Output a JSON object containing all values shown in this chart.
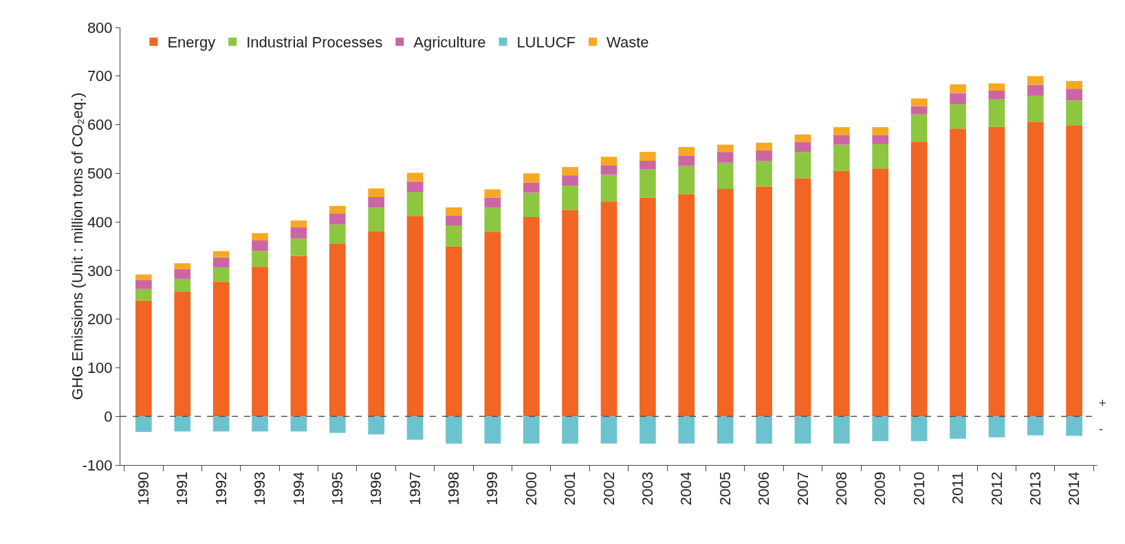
{
  "chart_data": {
    "type": "bar",
    "stacked": true,
    "ylabel": "GHG Emissions (Unit : million tons of CO₂eq.)",
    "categories": [
      "1990",
      "1991",
      "1992",
      "1993",
      "1994",
      "1995",
      "1996",
      "1997",
      "1998",
      "1999",
      "2000",
      "2001",
      "2002",
      "2003",
      "2004",
      "2005",
      "2006",
      "2007",
      "2008",
      "2009",
      "2010",
      "2011",
      "2012",
      "2013",
      "2014"
    ],
    "series": [
      {
        "name": "Energy",
        "color": "#f26522",
        "values": [
          238,
          257,
          277,
          308,
          330,
          355,
          381,
          412,
          350,
          379,
          410,
          425,
          441,
          450,
          457,
          468,
          473,
          490,
          505,
          510,
          565,
          592,
          596,
          606,
          598
        ]
      },
      {
        "name": "Industrial Processes",
        "color": "#8dc63f",
        "values": [
          24,
          26,
          29,
          32,
          36,
          40,
          48,
          49,
          42,
          50,
          50,
          50,
          56,
          58,
          58,
          54,
          52,
          54,
          54,
          50,
          56,
          50,
          56,
          54,
          52
        ]
      },
      {
        "name": "Agriculture",
        "color": "#cc66a3",
        "values": [
          19,
          20,
          21,
          22,
          23,
          22,
          22,
          22,
          21,
          21,
          21,
          21,
          19,
          18,
          21,
          22,
          22,
          20,
          20,
          19,
          17,
          23,
          18,
          22,
          24
        ]
      },
      {
        "name": "LULUCF",
        "color": "#6cc3cf",
        "values": [
          -32,
          -31,
          -31,
          -31,
          -31,
          -34,
          -37,
          -48,
          -56,
          -56,
          -56,
          -56,
          -56,
          -56,
          -56,
          -56,
          -56,
          -56,
          -56,
          -51,
          -51,
          -46,
          -43,
          -39,
          -40
        ]
      },
      {
        "name": "Waste",
        "color": "#f7a823",
        "values": [
          11,
          12,
          13,
          15,
          14,
          16,
          18,
          18,
          17,
          17,
          19,
          17,
          18,
          18,
          18,
          15,
          16,
          16,
          16,
          16,
          16,
          18,
          15,
          18,
          16
        ]
      }
    ],
    "ylim": [
      -100,
      800
    ],
    "yticks": [
      -100,
      0,
      100,
      200,
      300,
      400,
      500,
      600,
      700,
      800
    ],
    "ref_lines": [
      {
        "axis": "y",
        "value": 0,
        "color": "#555555",
        "line_style": "dashed"
      }
    ],
    "annotations": [
      "+",
      "-"
    ],
    "legend": "top left",
    "grid": false
  }
}
